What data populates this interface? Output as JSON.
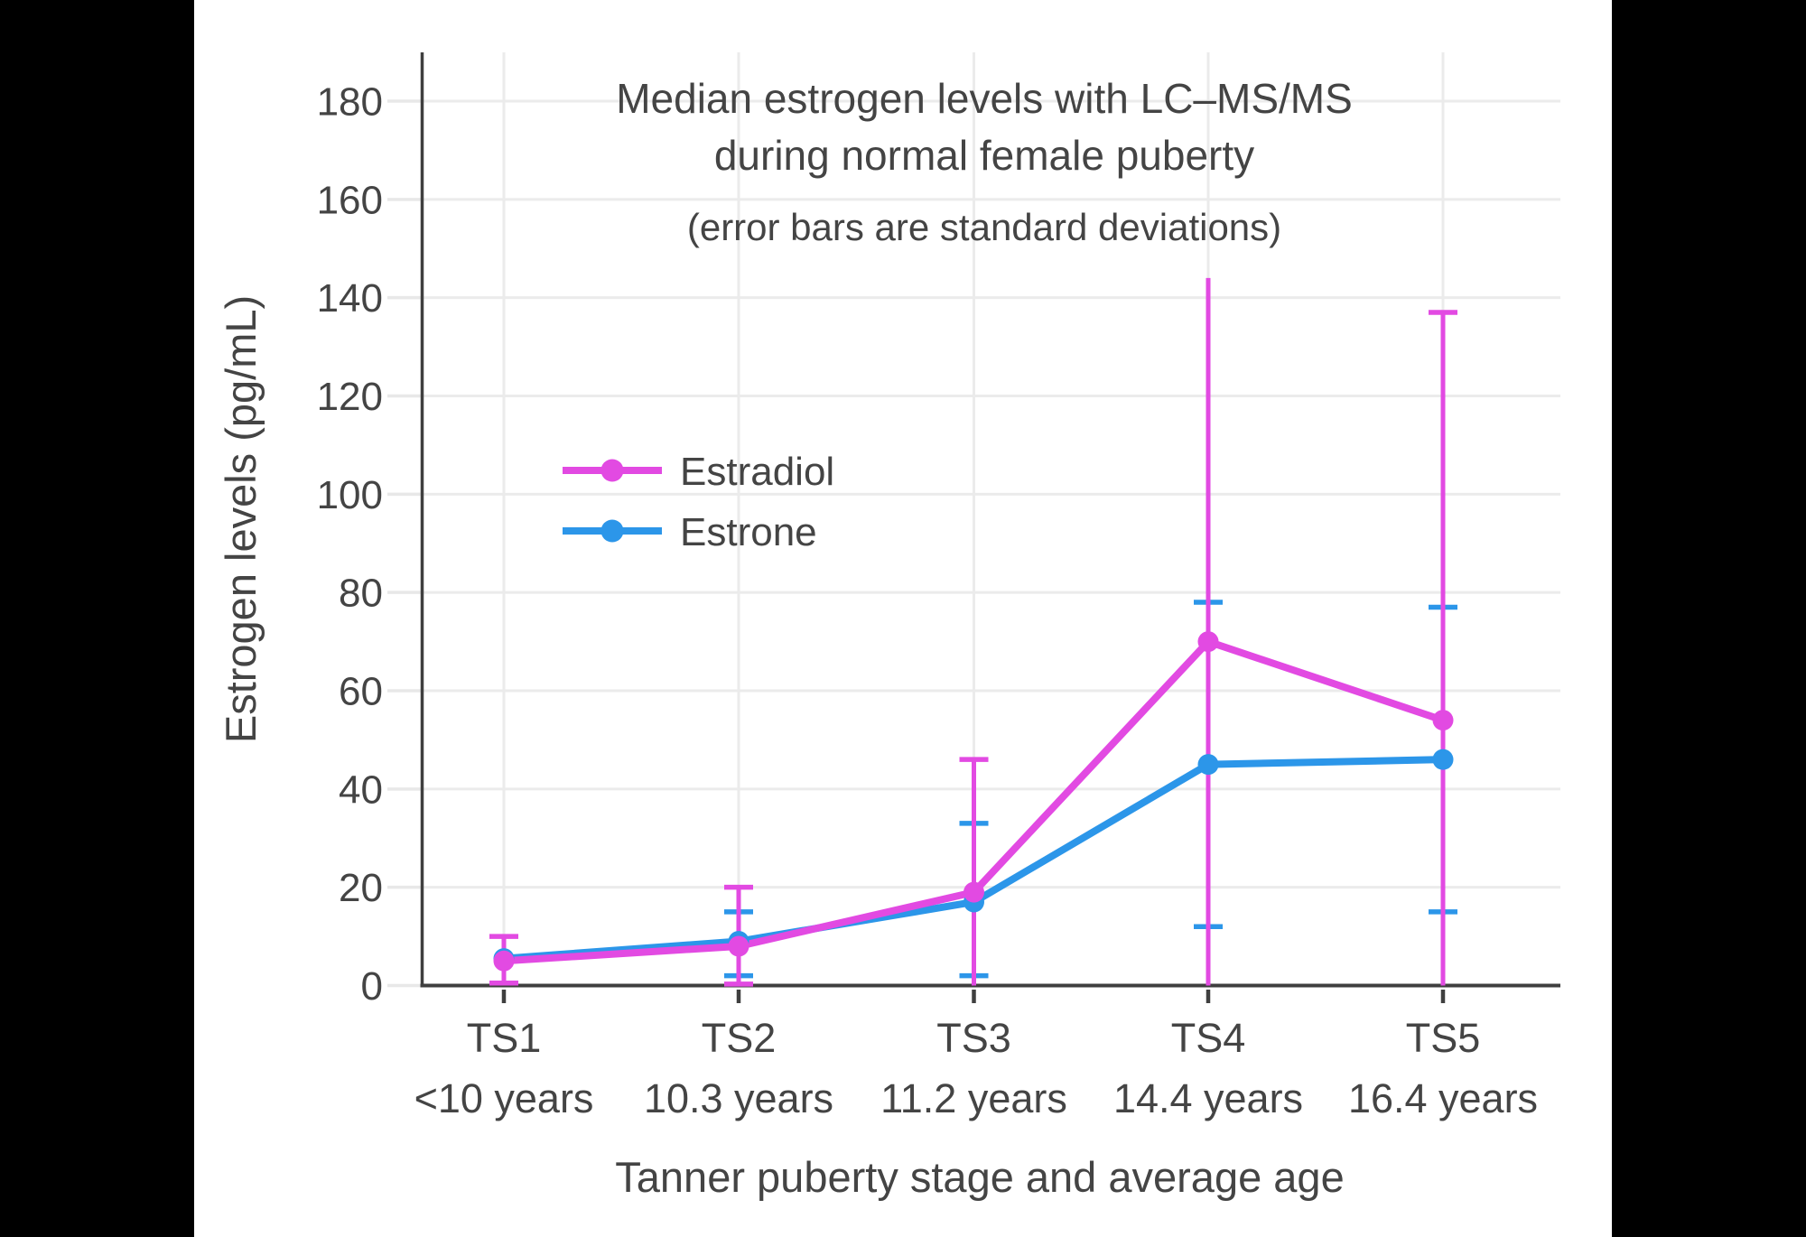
{
  "chart_data": {
    "type": "line",
    "title_lines": [
      "Median estrogen levels with LC–MS/MS",
      "during normal female puberty"
    ],
    "subtitle": "(error bars are standard deviations)",
    "xlabel": "Tanner puberty stage and average age",
    "ylabel": "Estrogen levels (pg/mL)",
    "categories": [
      "TS1",
      "TS2",
      "TS3",
      "TS4",
      "TS5"
    ],
    "category_ages": [
      "<10 years",
      "10.3 years",
      "11.2 years",
      "14.4 years",
      "16.4 years"
    ],
    "yticks": [
      0,
      20,
      40,
      60,
      80,
      100,
      120,
      140,
      160,
      180
    ],
    "ylim": [
      0,
      190
    ],
    "grid": true,
    "legend_position": "inside-upper-left",
    "error_bar_meaning": "standard deviations",
    "series": [
      {
        "name": "Estradiol",
        "color": "#E24AE2",
        "values": [
          5,
          8,
          19,
          70,
          54
        ],
        "error_low": [
          0.5,
          0.3,
          0,
          0,
          0
        ],
        "error_high": [
          10,
          20,
          46,
          144,
          137
        ],
        "cap_low": [
          true,
          true,
          false,
          false,
          false
        ],
        "cap_high": [
          true,
          true,
          true,
          false,
          true
        ]
      },
      {
        "name": "Estrone",
        "color": "#2C96E9",
        "values": [
          5.5,
          9,
          17,
          45,
          46
        ],
        "error_low": [
          null,
          2,
          2,
          12,
          15
        ],
        "error_high": [
          null,
          15,
          33,
          78,
          77
        ],
        "cap_low": [
          false,
          true,
          true,
          true,
          true
        ],
        "cap_high": [
          false,
          true,
          true,
          true,
          true
        ]
      }
    ],
    "colors": {
      "text": "#444444",
      "axis": "#3F3F3F",
      "grid": "#EBEBEB",
      "tick_light": "#E8E8E8",
      "plot_background": "#FFFFFF",
      "page_background": "#000000"
    }
  }
}
